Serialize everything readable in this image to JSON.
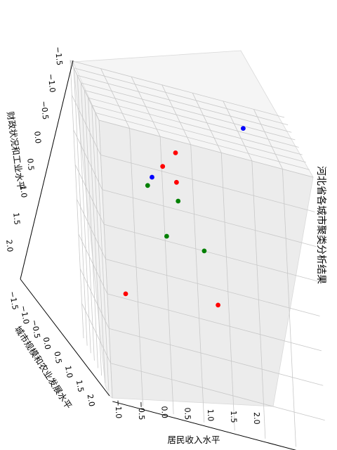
{
  "chart_data": {
    "type": "scatter",
    "projection": "3d",
    "title": "河北省各城市聚类分析结果",
    "xlabel": "居民收入水平",
    "ylabel": "城市规模和农业发展水平",
    "zlabel": "财政状况和工业水平",
    "x_ticks": [
      "−1.0",
      "−0.5",
      "0.0",
      "0.5",
      "1.0",
      "1.5",
      "2.0"
    ],
    "y_ticks": [
      "−1.5",
      "−1.0",
      "−0.5",
      "0.0",
      "0.5",
      "1.0",
      "1.5",
      "2.0"
    ],
    "z_ticks": [
      "−1.5",
      "−1.0",
      "−0.5",
      "0.0",
      "0.5",
      "1.0",
      "1.5",
      "2.0"
    ],
    "grid": true,
    "series": [
      {
        "color": "#ff0000",
        "points": [
          {
            "x": 0.45,
            "y": -0.95,
            "z": 0.55
          },
          {
            "x": 0.2,
            "y": -0.75,
            "z": 0.8
          },
          {
            "x": 0.4,
            "y": -0.6,
            "z": 0.95
          },
          {
            "x": 1.2,
            "y": 1.4,
            "z": -1.0
          },
          {
            "x": -0.6,
            "y": 1.1,
            "z": 1.6
          }
        ]
      },
      {
        "color": "#008000",
        "points": [
          {
            "x": 0.6,
            "y": 0.0,
            "z": -0.8
          },
          {
            "x": 0.35,
            "y": 0.5,
            "z": -0.5
          },
          {
            "x": 0.95,
            "y": 0.55,
            "z": -0.4
          },
          {
            "x": 0.0,
            "y": -0.3,
            "z": 0.2
          }
        ]
      },
      {
        "color": "#0000ff",
        "points": [
          {
            "x": 1.8,
            "y": -1.2,
            "z": -1.4
          },
          {
            "x": 0.1,
            "y": -0.4,
            "z": 0.0
          }
        ]
      }
    ]
  }
}
